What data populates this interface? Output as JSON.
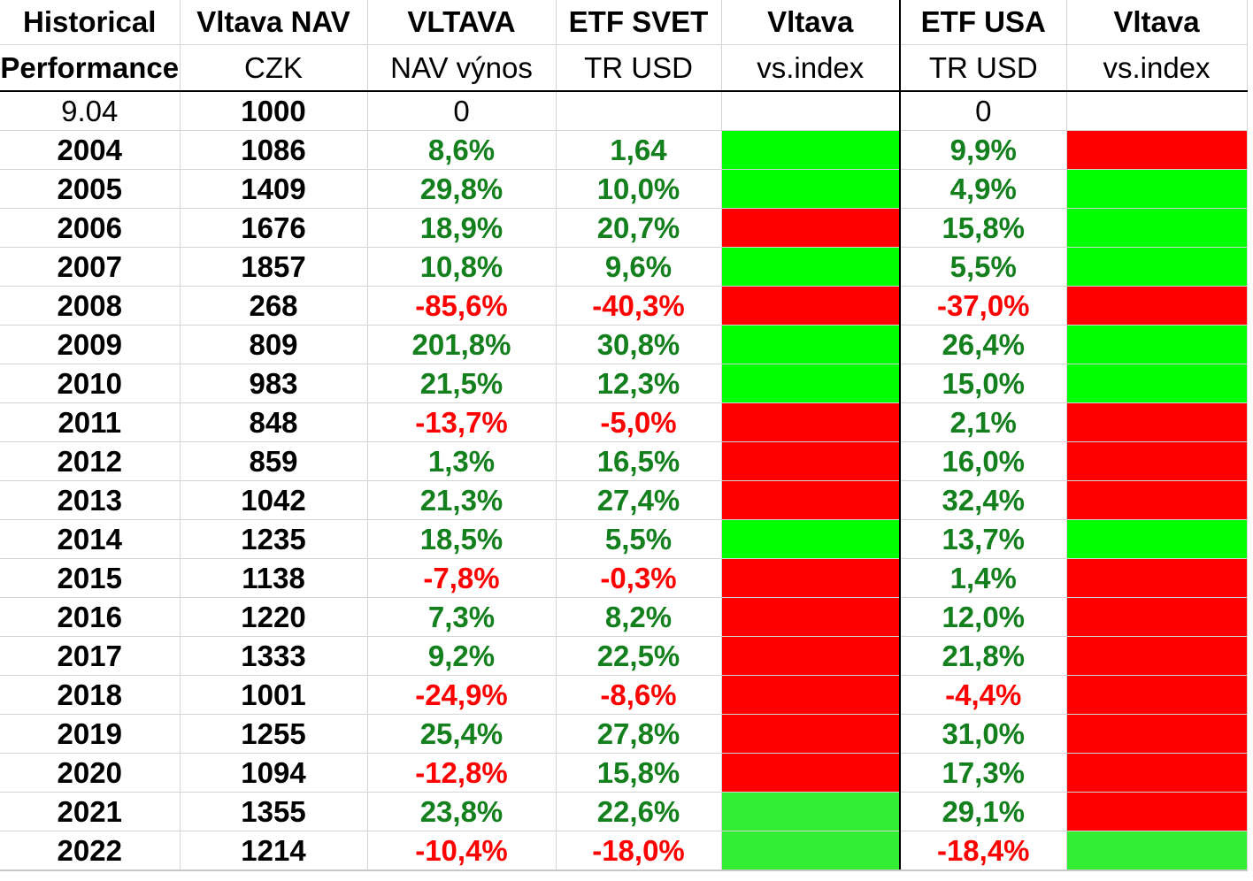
{
  "header": {
    "row1": [
      "Historical",
      "Vltava NAV",
      "VLTAVA",
      "ETF SVET",
      "Vltava",
      "ETF USA",
      "Vltava"
    ],
    "row2": [
      "Performance",
      "CZK",
      "NAV výnos",
      "TR USD",
      "vs.index",
      "TR USD",
      "vs.index"
    ]
  },
  "colors": {
    "positive_text": "#137f1d",
    "negative_text": "#ff0000",
    "fill_green": "#00ff00",
    "fill_green_light": "#33ee33",
    "fill_red": "#ff0000"
  },
  "rows": [
    {
      "year": "9.04",
      "nav": "1000",
      "vltava": "0",
      "etf_svet": "",
      "vs_svet": "none",
      "etf_usa": "0",
      "vs_usa": "none"
    },
    {
      "year": "2004",
      "nav": "1086",
      "vltava": "8,6%",
      "etf_svet": "1,64",
      "vs_svet": "green",
      "etf_usa": "9,9%",
      "vs_usa": "red"
    },
    {
      "year": "2005",
      "nav": "1409",
      "vltava": "29,8%",
      "etf_svet": "10,0%",
      "vs_svet": "green",
      "etf_usa": "4,9%",
      "vs_usa": "green"
    },
    {
      "year": "2006",
      "nav": "1676",
      "vltava": "18,9%",
      "etf_svet": "20,7%",
      "vs_svet": "red",
      "etf_usa": "15,8%",
      "vs_usa": "green"
    },
    {
      "year": "2007",
      "nav": "1857",
      "vltava": "10,8%",
      "etf_svet": "9,6%",
      "vs_svet": "green",
      "etf_usa": "5,5%",
      "vs_usa": "green"
    },
    {
      "year": "2008",
      "nav": "268",
      "vltava": "-85,6%",
      "etf_svet": "-40,3%",
      "vs_svet": "red",
      "etf_usa": "-37,0%",
      "vs_usa": "red"
    },
    {
      "year": "2009",
      "nav": "809",
      "vltava": "201,8%",
      "etf_svet": "30,8%",
      "vs_svet": "green",
      "etf_usa": "26,4%",
      "vs_usa": "green"
    },
    {
      "year": "2010",
      "nav": "983",
      "vltava": "21,5%",
      "etf_svet": "12,3%",
      "vs_svet": "green",
      "etf_usa": "15,0%",
      "vs_usa": "green"
    },
    {
      "year": "2011",
      "nav": "848",
      "vltava": "-13,7%",
      "etf_svet": "-5,0%",
      "vs_svet": "red",
      "etf_usa": "2,1%",
      "vs_usa": "red"
    },
    {
      "year": "2012",
      "nav": "859",
      "vltava": "1,3%",
      "etf_svet": "16,5%",
      "vs_svet": "red",
      "etf_usa": "16,0%",
      "vs_usa": "red"
    },
    {
      "year": "2013",
      "nav": "1042",
      "vltava": "21,3%",
      "etf_svet": "27,4%",
      "vs_svet": "red",
      "etf_usa": "32,4%",
      "vs_usa": "red"
    },
    {
      "year": "2014",
      "nav": "1235",
      "vltava": "18,5%",
      "etf_svet": "5,5%",
      "vs_svet": "green",
      "etf_usa": "13,7%",
      "vs_usa": "green"
    },
    {
      "year": "2015",
      "nav": "1138",
      "vltava": "-7,8%",
      "etf_svet": "-0,3%",
      "vs_svet": "red",
      "etf_usa": "1,4%",
      "vs_usa": "red"
    },
    {
      "year": "2016",
      "nav": "1220",
      "vltava": "7,3%",
      "etf_svet": "8,2%",
      "vs_svet": "red",
      "etf_usa": "12,0%",
      "vs_usa": "red"
    },
    {
      "year": "2017",
      "nav": "1333",
      "vltava": "9,2%",
      "etf_svet": "22,5%",
      "vs_svet": "red",
      "etf_usa": "21,8%",
      "vs_usa": "red"
    },
    {
      "year": "2018",
      "nav": "1001",
      "vltava": "-24,9%",
      "etf_svet": "-8,6%",
      "vs_svet": "red",
      "etf_usa": "-4,4%",
      "vs_usa": "red"
    },
    {
      "year": "2019",
      "nav": "1255",
      "vltava": "25,4%",
      "etf_svet": "27,8%",
      "vs_svet": "red",
      "etf_usa": "31,0%",
      "vs_usa": "red"
    },
    {
      "year": "2020",
      "nav": "1094",
      "vltava": "-12,8%",
      "etf_svet": "15,8%",
      "vs_svet": "red",
      "etf_usa": "17,3%",
      "vs_usa": "red"
    },
    {
      "year": "2021",
      "nav": "1355",
      "vltava": "23,8%",
      "etf_svet": "22,6%",
      "vs_svet": "light",
      "etf_usa": "29,1%",
      "vs_usa": "red"
    },
    {
      "year": "2022",
      "nav": "1214",
      "vltava": "-10,4%",
      "etf_svet": "-18,0%",
      "vs_svet": "light",
      "etf_usa": "-18,4%",
      "vs_usa": "light"
    }
  ]
}
